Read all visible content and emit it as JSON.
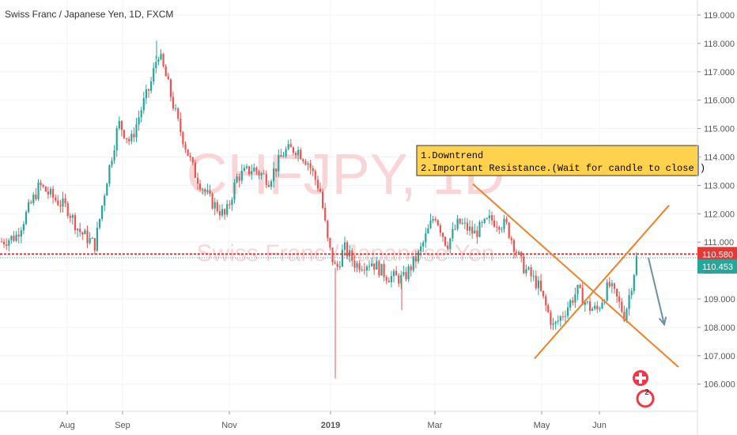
{
  "header": {
    "title": "Swiss Franc / Japanese Yen, 1D, FXCM"
  },
  "watermark": {
    "symbol": "CHFJPY, 1D",
    "name": "Swiss Franc / Japanese Yen"
  },
  "note": {
    "line1": "1.Downtrend",
    "line2": "2.Important Resistance.(Wait for candle to close )"
  },
  "price_tags": {
    "resistance": "110.580",
    "last": "110.453"
  },
  "badge": {
    "count": "2"
  },
  "colors": {
    "up": "#26a69a",
    "down": "#ef5350",
    "resistance": "#e53935",
    "last_price": "#26a69a",
    "trend_lines": "#f0802a",
    "arrow": "#6f8fa0",
    "note_bg": "#ffd24d",
    "badge": "#f23645"
  },
  "chart_data": {
    "type": "candlestick",
    "title": "Swiss Franc / Japanese Yen, 1D, FXCM",
    "y_ticks": [
      "119.000",
      "118.000",
      "117.000",
      "116.000",
      "115.000",
      "114.000",
      "113.000",
      "112.000",
      "111.000",
      "110.000",
      "109.000",
      "108.000",
      "107.000",
      "106.000"
    ],
    "ylim": [
      105,
      119.5
    ],
    "x_ticks": [
      "Aug",
      "Sep",
      "Nov",
      "2019",
      "Mar",
      "May",
      "Jun"
    ],
    "price_path": [
      [
        0,
        111.0
      ],
      [
        20,
        111.2
      ],
      [
        50,
        113.0
      ],
      [
        70,
        112.5
      ],
      [
        85,
        112.2
      ],
      [
        100,
        111.4
      ],
      [
        120,
        110.9
      ],
      [
        135,
        113.2
      ],
      [
        150,
        115.2
      ],
      [
        165,
        114.5
      ],
      [
        180,
        115.8
      ],
      [
        190,
        116.5
      ],
      [
        200,
        117.7
      ],
      [
        210,
        116.8
      ],
      [
        225,
        115.2
      ],
      [
        245,
        113.5
      ],
      [
        265,
        112.5
      ],
      [
        285,
        111.9
      ],
      [
        300,
        113.3
      ],
      [
        320,
        113.6
      ],
      [
        340,
        113.2
      ],
      [
        360,
        114.2
      ],
      [
        375,
        114.3
      ],
      [
        390,
        113.8
      ],
      [
        405,
        112.8
      ],
      [
        415,
        110.9
      ],
      [
        425,
        110.0
      ],
      [
        435,
        110.8
      ],
      [
        450,
        110.2
      ],
      [
        470,
        110.3
      ],
      [
        490,
        109.8
      ],
      [
        510,
        109.7
      ],
      [
        530,
        110.6
      ],
      [
        550,
        112.0
      ],
      [
        565,
        110.9
      ],
      [
        580,
        111.7
      ],
      [
        600,
        111.3
      ],
      [
        620,
        111.8
      ],
      [
        640,
        111.6
      ],
      [
        660,
        110.2
      ],
      [
        680,
        109.5
      ],
      [
        700,
        108.0
      ],
      [
        715,
        108.6
      ],
      [
        730,
        109.3
      ],
      [
        745,
        108.7
      ],
      [
        755,
        108.6
      ],
      [
        770,
        109.5
      ],
      [
        780,
        109.0
      ],
      [
        790,
        108.4
      ],
      [
        800,
        109.7
      ],
      [
        805,
        110.45
      ]
    ],
    "spikes": [
      [
        424,
        106.2
      ],
      [
        508,
        108.6
      ],
      [
        198,
        118.1
      ]
    ],
    "resistance_level": 110.58,
    "last_price": 110.453,
    "annotations": {
      "down_line": [
        [
          598,
          113.05
        ],
        [
          858,
          106.6
        ]
      ],
      "up_line": [
        [
          676,
          106.9
        ],
        [
          846,
          112.3
        ]
      ],
      "arrow": [
        [
          820,
          110.45
        ],
        [
          840,
          108.1
        ]
      ]
    }
  }
}
